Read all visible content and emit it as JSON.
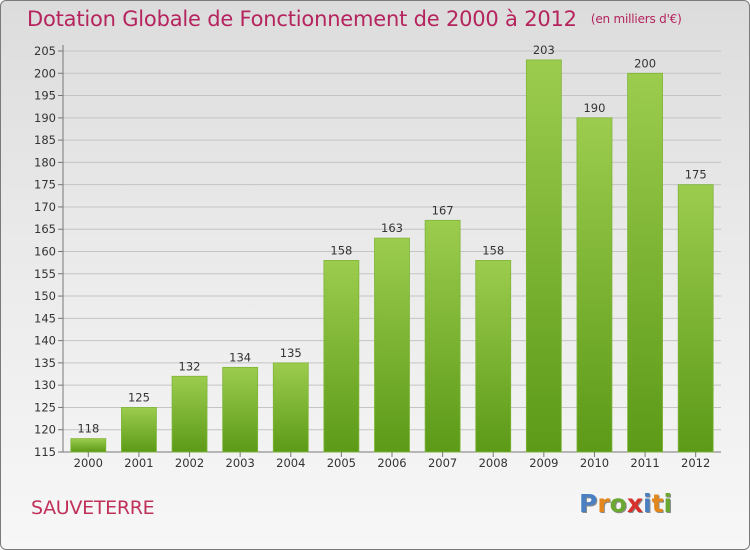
{
  "title": "Dotation Globale de Fonctionnement de 2000 à 2012",
  "unit_note": "(en milliers d'€)",
  "commune": "SAUVETERRE",
  "logo": {
    "letters": [
      "P",
      "r",
      "o",
      "x",
      "i",
      "t",
      "i"
    ],
    "colors": [
      "#4a7fc1",
      "#e3861c",
      "#6aa832",
      "#d8312c",
      "#4a7fc1",
      "#e3861c",
      "#6aa832"
    ]
  },
  "chart_data": {
    "type": "bar",
    "categories": [
      "2000",
      "2001",
      "2002",
      "2003",
      "2004",
      "2005",
      "2006",
      "2007",
      "2008",
      "2009",
      "2010",
      "2011",
      "2012"
    ],
    "values": [
      118,
      125,
      132,
      134,
      135,
      158,
      163,
      167,
      158,
      203,
      190,
      200,
      175
    ],
    "ylim": [
      115,
      205
    ],
    "yticks": [
      115,
      120,
      125,
      130,
      135,
      140,
      145,
      150,
      155,
      160,
      165,
      170,
      175,
      180,
      185,
      190,
      195,
      200,
      205
    ],
    "grid": true,
    "bar_color_top": "#9ccc4e",
    "bar_color_bottom": "#5c9a18",
    "label_color": "#333333"
  }
}
